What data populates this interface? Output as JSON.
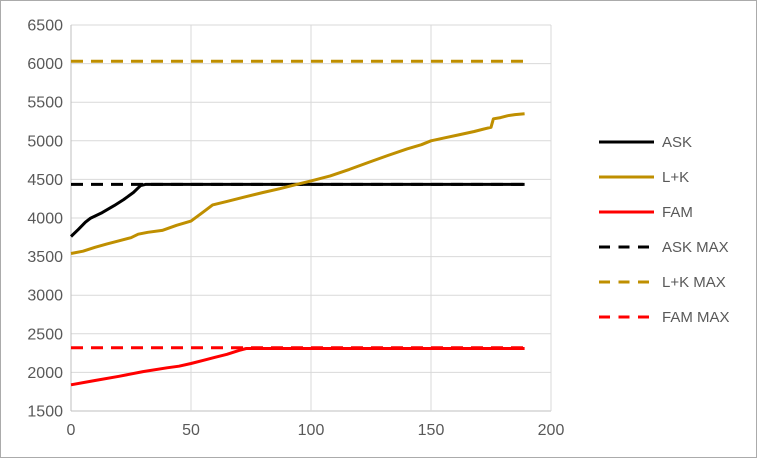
{
  "window": {
    "background": "#ffffff",
    "border_color": "#ababab"
  },
  "chart_data": {
    "type": "line",
    "title": "",
    "xlabel": "",
    "ylabel": "",
    "xlim": [
      0,
      200
    ],
    "ylim": [
      1500,
      6500
    ],
    "x_ticks": [
      0,
      50,
      100,
      150,
      200
    ],
    "y_ticks": [
      1500,
      2000,
      2500,
      3000,
      3500,
      4000,
      4500,
      5000,
      5500,
      6000,
      6500
    ],
    "grid": true,
    "legend_position": "right",
    "colors": {
      "grid": "#d9d9d9",
      "axis": "#bfbfbf",
      "tick_label": "#595959",
      "legend_label": "#595959"
    },
    "series": [
      {
        "name": "ASK",
        "color": "#000000",
        "style": "solid",
        "points": [
          [
            0,
            3760
          ],
          [
            3,
            3850
          ],
          [
            6,
            3945
          ],
          [
            8,
            3995
          ],
          [
            13,
            4070
          ],
          [
            18,
            4160
          ],
          [
            22,
            4240
          ],
          [
            26,
            4330
          ],
          [
            29,
            4420
          ],
          [
            31,
            4435
          ],
          [
            189,
            4435
          ]
        ]
      },
      {
        "name": "L+K",
        "color": "#bf8f00",
        "style": "solid",
        "points": [
          [
            0,
            3540
          ],
          [
            5,
            3570
          ],
          [
            10,
            3620
          ],
          [
            15,
            3665
          ],
          [
            20,
            3705
          ],
          [
            25,
            3745
          ],
          [
            28,
            3790
          ],
          [
            32,
            3815
          ],
          [
            38,
            3840
          ],
          [
            44,
            3905
          ],
          [
            50,
            3960
          ],
          [
            55,
            4075
          ],
          [
            59,
            4170
          ],
          [
            65,
            4215
          ],
          [
            72,
            4270
          ],
          [
            80,
            4330
          ],
          [
            87,
            4380
          ],
          [
            94,
            4435
          ],
          [
            100,
            4480
          ],
          [
            108,
            4545
          ],
          [
            116,
            4630
          ],
          [
            124,
            4720
          ],
          [
            132,
            4810
          ],
          [
            140,
            4895
          ],
          [
            146,
            4950
          ],
          [
            150,
            5000
          ],
          [
            156,
            5040
          ],
          [
            162,
            5080
          ],
          [
            168,
            5120
          ],
          [
            173,
            5160
          ],
          [
            175,
            5175
          ],
          [
            176,
            5285
          ],
          [
            179,
            5300
          ],
          [
            182,
            5325
          ],
          [
            185,
            5340
          ],
          [
            189,
            5350
          ]
        ]
      },
      {
        "name": "FAM",
        "color": "#ff0000",
        "style": "solid",
        "points": [
          [
            0,
            1840
          ],
          [
            10,
            1895
          ],
          [
            20,
            1950
          ],
          [
            30,
            2010
          ],
          [
            40,
            2060
          ],
          [
            45,
            2080
          ],
          [
            50,
            2115
          ],
          [
            55,
            2155
          ],
          [
            60,
            2195
          ],
          [
            65,
            2235
          ],
          [
            70,
            2285
          ],
          [
            73,
            2310
          ],
          [
            189,
            2310
          ]
        ]
      },
      {
        "name": "ASK MAX",
        "color": "#000000",
        "style": "dashed",
        "points": [
          [
            0,
            4435
          ],
          [
            189,
            4435
          ]
        ]
      },
      {
        "name": "L+K MAX",
        "color": "#bf8f00",
        "style": "dashed",
        "points": [
          [
            0,
            6030
          ],
          [
            189,
            6030
          ]
        ]
      },
      {
        "name": "FAM MAX",
        "color": "#ff0000",
        "style": "dashed",
        "points": [
          [
            0,
            2320
          ],
          [
            189,
            2320
          ]
        ]
      }
    ],
    "legend": [
      "ASK",
      "L+K",
      "FAM",
      "ASK MAX",
      "L+K MAX",
      "FAM MAX"
    ]
  }
}
